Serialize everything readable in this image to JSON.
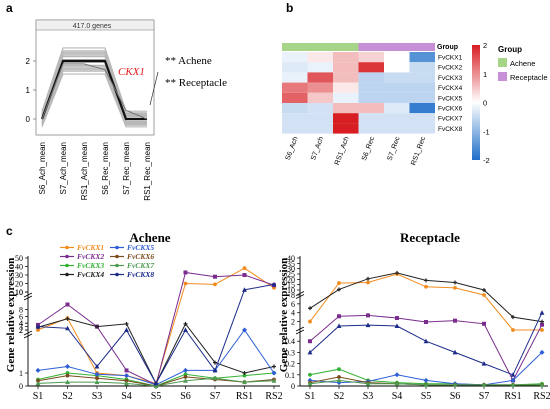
{
  "panel_labels": {
    "a": "a",
    "b": "b",
    "c": "c"
  },
  "panel_a": {
    "header": "417.0 genes",
    "y_ticks": [
      "2",
      "1",
      "0"
    ],
    "x_labels": [
      "S6_Ach_mean",
      "S7_Ach_mean",
      "RS1_Ach_mean",
      "S6_Rec_mean",
      "S7_Rec_mean",
      "RS1_Rec_mean"
    ],
    "gene_label": "CKX1",
    "annotations": [
      "** Achene",
      "** Receptacle"
    ],
    "mean_profile": [
      0,
      2,
      2,
      2,
      0,
      0
    ],
    "accent_color": "#e41a1c"
  },
  "panel_b": {
    "group_label": "Group",
    "genes": [
      "FvCKX1",
      "FvCKX2",
      "FvCKX3",
      "FvCKX4",
      "FvCKX5",
      "FvCKX6",
      "FvCKX7",
      "FvCKX8"
    ],
    "columns": [
      "S6_Ach",
      "S7_Ach",
      "RS1_Ach",
      "S6_Rec",
      "S7_Rec",
      "RS1_Rec"
    ],
    "column_groups": [
      "Achene",
      "Achene",
      "Achene",
      "Receptacle",
      "Receptacle",
      "Receptacle"
    ],
    "values": [
      [
        -0.2,
        0.2,
        0.6,
        0.4,
        0.0,
        -1.5
      ],
      [
        -0.3,
        -0.2,
        0.6,
        1.8,
        0.0,
        -0.5
      ],
      [
        -0.2,
        1.5,
        0.6,
        -0.6,
        -0.5,
        -0.5
      ],
      [
        1.2,
        1.0,
        0.2,
        -0.6,
        -0.6,
        -0.6
      ],
      [
        1.4,
        0.5,
        -0.2,
        -0.6,
        -0.6,
        -0.6
      ],
      [
        -0.5,
        -0.4,
        0.6,
        0.6,
        -0.3,
        -1.8
      ],
      [
        -0.4,
        -0.4,
        2.0,
        -0.4,
        -0.4,
        -0.4
      ],
      [
        -0.4,
        -0.4,
        2.0,
        -0.4,
        -0.4,
        -0.4
      ]
    ],
    "colorbar_ticks": [
      "2",
      "1",
      "0",
      "-1",
      "-2"
    ],
    "legend_title": "Group",
    "legend_items": [
      {
        "label": "Achene",
        "color": "#a6d58a"
      },
      {
        "label": "Receptacle",
        "color": "#c78fd6"
      }
    ]
  },
  "panel_c": {
    "ylabel": "Gene relative expression",
    "x_labels": [
      "S1",
      "S2",
      "S3",
      "S4",
      "S5",
      "S6",
      "S7",
      "RS1",
      "RS2"
    ],
    "legend": [
      {
        "name": "FvCKX1",
        "color": "#f28c1e"
      },
      {
        "name": "FvCKX2",
        "color": "#7b2d8e"
      },
      {
        "name": "FvCKX3",
        "color": "#33b233"
      },
      {
        "name": "FvCKX4",
        "color": "#222222"
      },
      {
        "name": "FvCKX5",
        "color": "#2f5fd6"
      },
      {
        "name": "FvCKX6",
        "color": "#7a4b1e"
      },
      {
        "name": "FvCKX7",
        "color": "#4d9a50"
      },
      {
        "name": "FvCKX8",
        "color": "#1c2a8a"
      }
    ]
  },
  "chart_data": [
    {
      "type": "line",
      "title": "Achene",
      "xlabel": "",
      "ylabel": "Gene relative expression",
      "x": [
        "S1",
        "S2",
        "S3",
        "S4",
        "S5",
        "S6",
        "S7",
        "RS1",
        "RS2"
      ],
      "axis_segments": [
        {
          "range": [
            10,
            50
          ],
          "ticks": [
            10,
            20,
            30,
            40,
            50
          ]
        },
        {
          "range": [
            2,
            12
          ],
          "ticks": [
            2,
            4,
            6,
            8,
            10
          ]
        },
        {
          "range": [
            0,
            4
          ],
          "ticks": [
            0,
            1,
            2,
            3,
            4
          ]
        }
      ],
      "series": [
        {
          "name": "FvCKX1",
          "values": [
            2.0,
            5.5,
            1.0,
            0.8,
            0.2,
            20,
            19,
            38,
            15
          ]
        },
        {
          "name": "FvCKX2",
          "values": [
            3.5,
            9.5,
            3.0,
            1.2,
            0.1,
            33,
            28,
            30,
            18
          ]
        },
        {
          "name": "FvCKX3",
          "values": [
            0.5,
            1.0,
            0.8,
            0.5,
            0.0,
            0.9,
            0.6,
            0.8,
            1.0
          ]
        },
        {
          "name": "FvCKX4",
          "values": [
            2.8,
            5.3,
            3.0,
            3.8,
            0.2,
            3.8,
            1.8,
            1.0,
            1.5
          ]
        },
        {
          "name": "FvCKX5",
          "values": [
            1.2,
            1.5,
            0.9,
            0.8,
            0.1,
            1.2,
            1.2,
            2.0,
            1.0
          ]
        },
        {
          "name": "FvCKX6",
          "values": [
            0.4,
            0.8,
            0.6,
            0.4,
            0.0,
            0.7,
            0.5,
            0.3,
            0.5
          ]
        },
        {
          "name": "FvCKX7",
          "values": [
            0.2,
            0.3,
            0.3,
            0.2,
            0.0,
            0.4,
            0.6,
            0.3,
            0.4
          ]
        },
        {
          "name": "FvCKX8",
          "values": [
            3.0,
            2.5,
            1.5,
            2.0,
            0.2,
            2.0,
            1.2,
            12.5,
            19
          ]
        }
      ]
    },
    {
      "type": "line",
      "title": "Receptacle",
      "xlabel": "",
      "ylabel": "Gene relative expression",
      "x": [
        "S1",
        "S2",
        "S3",
        "S4",
        "S5",
        "S6",
        "S7",
        "RS1",
        "RS2"
      ],
      "axis_segments": [
        {
          "range": [
            10,
            40
          ],
          "ticks": [
            10,
            15,
            20,
            25,
            30,
            35,
            40
          ]
        },
        {
          "range": [
            1,
            8
          ],
          "ticks": [
            2,
            4,
            6,
            8
          ]
        },
        {
          "range": [
            0,
            0.5
          ],
          "ticks": [
            0,
            0.1,
            0.2,
            0.3,
            0.4
          ]
        }
      ],
      "series": [
        {
          "name": "FvCKX1",
          "values": [
            2.0,
            16.5,
            17.0,
            25.0,
            13.0,
            12.0,
            9.0,
            0.6,
            0.5
          ]
        },
        {
          "name": "FvCKX2",
          "values": [
            0.4,
            3.2,
            3.4,
            2.8,
            1.9,
            2.2,
            1.5,
            0.05,
            1.3
          ]
        },
        {
          "name": "FvCKX3",
          "values": [
            0.1,
            0.15,
            0.05,
            0.03,
            0.02,
            0.02,
            0.01,
            0.01,
            0.02
          ]
        },
        {
          "name": "FvCKX4",
          "values": [
            5.0,
            10.5,
            20.5,
            26.0,
            19.0,
            17.0,
            10.0,
            3.0,
            2.0
          ]
        },
        {
          "name": "FvCKX5",
          "values": [
            0.05,
            0.03,
            0.04,
            0.1,
            0.05,
            0.02,
            0.01,
            0.05,
            0.3
          ]
        },
        {
          "name": "FvCKX6",
          "values": [
            0.03,
            0.08,
            0.03,
            0.02,
            0.01,
            0.01,
            0.01,
            0.01,
            0.01
          ]
        },
        {
          "name": "FvCKX7",
          "values": [
            0.02,
            0.05,
            0.02,
            0.02,
            0.01,
            0.01,
            0.01,
            0.01,
            0.01
          ]
        },
        {
          "name": "FvCKX8",
          "values": [
            0.3,
            1.0,
            1.2,
            1.0,
            0.4,
            0.3,
            0.2,
            0.1,
            4.0
          ]
        }
      ]
    }
  ]
}
